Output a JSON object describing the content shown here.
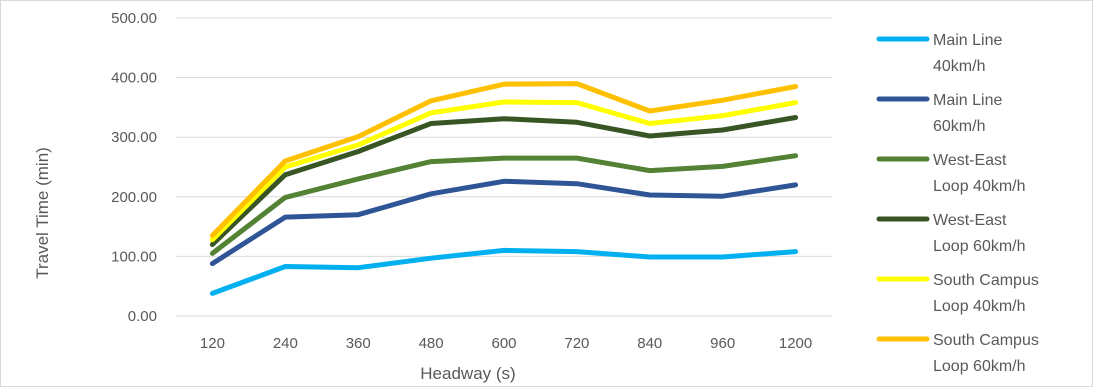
{
  "chart_data": {
    "type": "line",
    "title": "",
    "xlabel": "Headway (s)",
    "ylabel": "Travel Time (min)",
    "categories": [
      "120",
      "240",
      "360",
      "480",
      "600",
      "720",
      "840",
      "960",
      "1200"
    ],
    "ylim": [
      0,
      500
    ],
    "yticks": [
      "0.00",
      "100.00",
      "200.00",
      "300.00",
      "400.00",
      "500.00"
    ],
    "grid": "horizontal",
    "legend_position": "right",
    "series": [
      {
        "name_lines": [
          "Main Line",
          "40km/h"
        ],
        "color": "#00B0F0",
        "values": [
          38,
          83,
          81,
          97,
          110,
          108,
          99,
          99,
          108
        ]
      },
      {
        "name_lines": [
          "Main Line",
          "60km/h"
        ],
        "color": "#2F5597",
        "values": [
          88,
          166,
          170,
          205,
          226,
          222,
          203,
          201,
          220
        ]
      },
      {
        "name_lines": [
          "West-East",
          "Loop 40km/h"
        ],
        "color": "#548235",
        "values": [
          105,
          199,
          230,
          259,
          265,
          265,
          244,
          251,
          269
        ]
      },
      {
        "name_lines": [
          "West-East",
          "Loop 60km/h"
        ],
        "color": "#375623",
        "values": [
          120,
          237,
          276,
          323,
          331,
          325,
          302,
          312,
          333
        ]
      },
      {
        "name_lines": [
          "South Campus",
          "Loop 40km/h"
        ],
        "color": "#FFFF00",
        "values": [
          128,
          250,
          287,
          341,
          359,
          358,
          323,
          336,
          358
        ]
      },
      {
        "name_lines": [
          "South Campus",
          "Loop 60km/h"
        ],
        "color": "#FFC000",
        "values": [
          135,
          260,
          301,
          361,
          389,
          390,
          344,
          362,
          385
        ]
      }
    ]
  }
}
